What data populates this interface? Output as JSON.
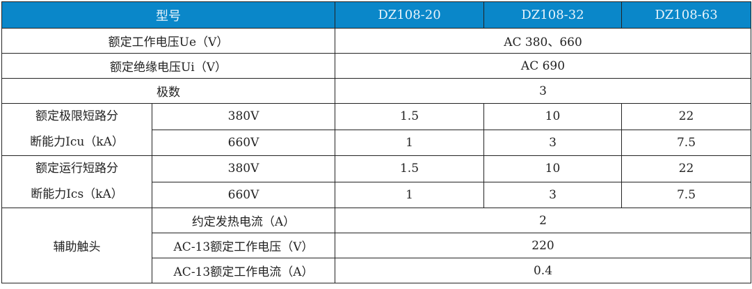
{
  "header": {
    "model_label": "型号",
    "models": [
      "DZ108-20",
      "DZ108-32",
      "DZ108-63"
    ]
  },
  "rated_voltage": {
    "label": "额定工作电压Ue（V）",
    "value": "AC 380、660"
  },
  "insulation_voltage": {
    "label": "额定绝缘电压Ui（V）",
    "value": "AC 690"
  },
  "poles": {
    "label": "极数",
    "value": "3"
  },
  "icu": {
    "label_line1": "额定极限短路分",
    "label_line2": "断能力Icu（kA）",
    "rows": [
      {
        "voltage": "380V",
        "values": [
          "1.5",
          "10",
          "22"
        ]
      },
      {
        "voltage": "660V",
        "values": [
          "1",
          "3",
          "7.5"
        ]
      }
    ]
  },
  "ics": {
    "label_line1": "额定运行短路分",
    "label_line2": "断能力Ics（kA）",
    "rows": [
      {
        "voltage": "380V",
        "values": [
          "1.5",
          "10",
          "22"
        ]
      },
      {
        "voltage": "660V",
        "values": [
          "1",
          "3",
          "7.5"
        ]
      }
    ]
  },
  "aux": {
    "label": "辅助触头",
    "rows": [
      {
        "label": "约定发热电流（A）",
        "value": "2"
      },
      {
        "label": "AC-13额定工作电压（V）",
        "value": "220"
      },
      {
        "label": "AC-13额定工作电流（A）",
        "value": "0.4"
      }
    ]
  },
  "colors": {
    "header_bg": "#0a87c9",
    "header_text": "#e8f4fb",
    "border": "#222222"
  }
}
